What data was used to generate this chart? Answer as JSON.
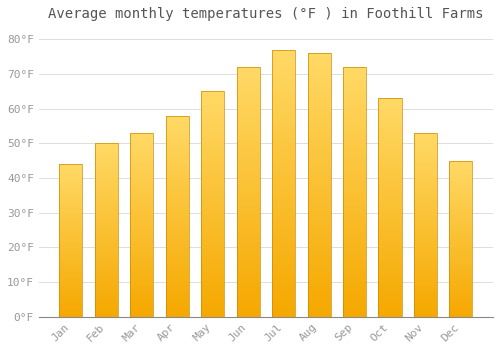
{
  "title": "Average monthly temperatures (°F ) in Foothill Farms",
  "months": [
    "Jan",
    "Feb",
    "Mar",
    "Apr",
    "May",
    "Jun",
    "Jul",
    "Aug",
    "Sep",
    "Oct",
    "Nov",
    "Dec"
  ],
  "values": [
    44,
    50,
    53,
    58,
    65,
    72,
    77,
    76,
    72,
    63,
    53,
    45
  ],
  "bar_color_bottom": "#F5A800",
  "bar_color_top": "#FFD966",
  "bar_edge_color": "#CC8800",
  "background_color": "#FFFFFF",
  "grid_color": "#DDDDDD",
  "ylim": [
    0,
    83
  ],
  "yticks": [
    0,
    10,
    20,
    30,
    40,
    50,
    60,
    70,
    80
  ],
  "title_fontsize": 10,
  "tick_fontsize": 8,
  "tick_color": "#999999",
  "title_color": "#555555",
  "font_family": "monospace",
  "bar_width": 0.65
}
